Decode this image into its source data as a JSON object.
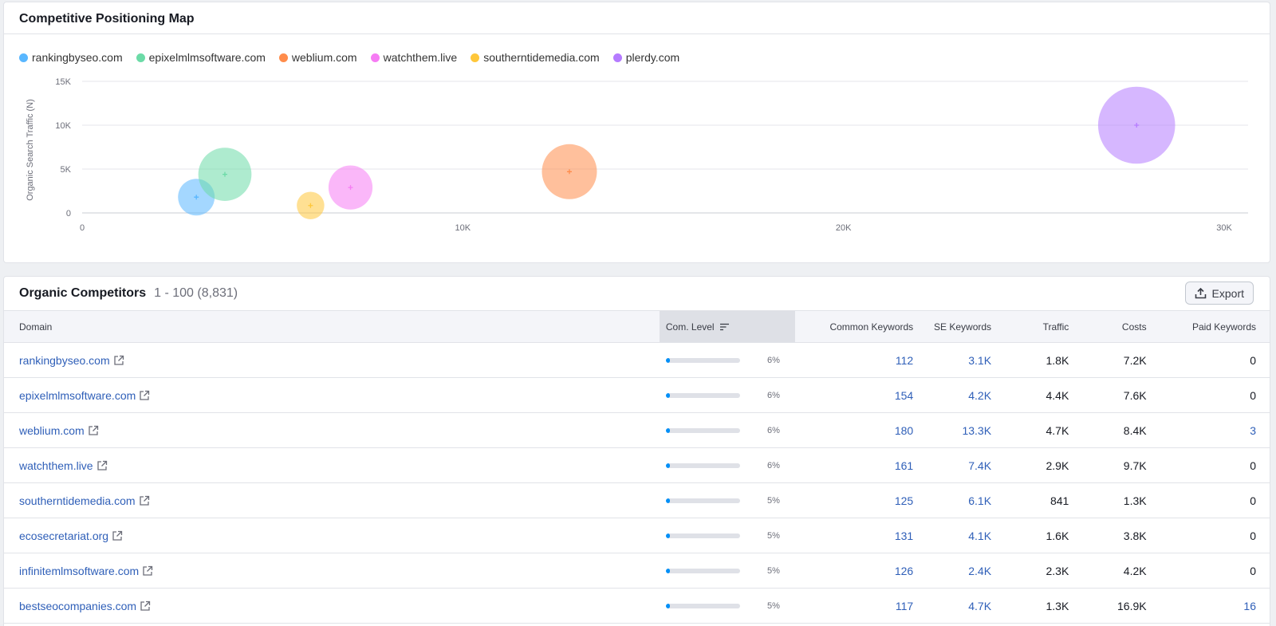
{
  "map": {
    "title": "Competitive Positioning Map",
    "legend": [
      {
        "label": "rankingbyseo.com",
        "color": "#59b7ff"
      },
      {
        "label": "epixelmlmsoftware.com",
        "color": "#6cdba7"
      },
      {
        "label": "weblium.com",
        "color": "#ff8c4b"
      },
      {
        "label": "watchthem.live",
        "color": "#f67cf4"
      },
      {
        "label": "southerntidemedia.com",
        "color": "#ffc73a"
      },
      {
        "label": "plerdy.com",
        "color": "#b57bff"
      }
    ]
  },
  "chart_data": {
    "type": "scatter",
    "ylabel": "Organic Search Traffic (N)",
    "xlabel": "",
    "xlim": [
      0,
      30000
    ],
    "ylim": [
      0,
      15000
    ],
    "x_ticks": [
      "0",
      "10K",
      "20K",
      "30K"
    ],
    "y_ticks": [
      "0",
      "5K",
      "10K",
      "15K"
    ],
    "grid": true,
    "legend_position": "top-left",
    "series": [
      {
        "name": "rankingbyseo.com",
        "color": "#59b7ff",
        "x": 3000,
        "y": 1800,
        "size": 1.0
      },
      {
        "name": "epixelmlmsoftware.com",
        "color": "#6cdba7",
        "x": 3750,
        "y": 4400,
        "size": 1.45
      },
      {
        "name": "weblium.com",
        "color": "#ff8c4b",
        "x": 12800,
        "y": 4700,
        "size": 1.5
      },
      {
        "name": "watchthem.live",
        "color": "#f67cf4",
        "x": 7050,
        "y": 2900,
        "size": 1.2
      },
      {
        "name": "southerntidemedia.com",
        "color": "#ffc73a",
        "x": 6000,
        "y": 841,
        "size": 0.75
      },
      {
        "name": "plerdy.com",
        "color": "#b57bff",
        "x": 27700,
        "y": 10000,
        "size": 2.1
      }
    ]
  },
  "competitors": {
    "title": "Organic Competitors",
    "range": "1 - 100 (8,831)",
    "export_label": "Export",
    "columns": [
      "Domain",
      "Com. Level",
      "Common Keywords",
      "SE Keywords",
      "Traffic",
      "Costs",
      "Paid Keywords"
    ],
    "rows": [
      {
        "domain": "rankingbyseo.com",
        "level": 6,
        "level_label": "6%",
        "common": "112",
        "se": "3.1K",
        "traffic": "1.8K",
        "costs": "7.2K",
        "paid": "0"
      },
      {
        "domain": "epixelmlmsoftware.com",
        "level": 6,
        "level_label": "6%",
        "common": "154",
        "se": "4.2K",
        "traffic": "4.4K",
        "costs": "7.6K",
        "paid": "0"
      },
      {
        "domain": "weblium.com",
        "level": 6,
        "level_label": "6%",
        "common": "180",
        "se": "13.3K",
        "traffic": "4.7K",
        "costs": "8.4K",
        "paid": "3"
      },
      {
        "domain": "watchthem.live",
        "level": 6,
        "level_label": "6%",
        "common": "161",
        "se": "7.4K",
        "traffic": "2.9K",
        "costs": "9.7K",
        "paid": "0"
      },
      {
        "domain": "southerntidemedia.com",
        "level": 5,
        "level_label": "5%",
        "common": "125",
        "se": "6.1K",
        "traffic": "841",
        "costs": "1.3K",
        "paid": "0"
      },
      {
        "domain": "ecosecretariat.org",
        "level": 5,
        "level_label": "5%",
        "common": "131",
        "se": "4.1K",
        "traffic": "1.6K",
        "costs": "3.8K",
        "paid": "0"
      },
      {
        "domain": "infinitemlmsoftware.com",
        "level": 5,
        "level_label": "5%",
        "common": "126",
        "se": "2.4K",
        "traffic": "2.3K",
        "costs": "4.2K",
        "paid": "0"
      },
      {
        "domain": "bestseocompanies.com",
        "level": 5,
        "level_label": "5%",
        "common": "117",
        "se": "4.7K",
        "traffic": "1.3K",
        "costs": "16.9K",
        "paid": "16"
      }
    ]
  }
}
